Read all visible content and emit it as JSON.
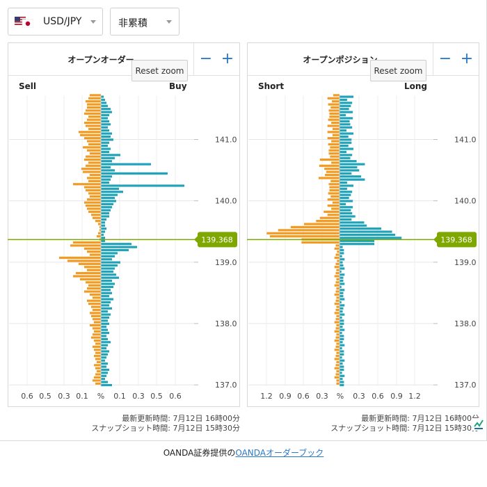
{
  "header": {
    "pair_select": {
      "value": "USD/JPY"
    },
    "mode_select": {
      "value": "非累積"
    }
  },
  "left_panel": {
    "title": "オープンオーダー",
    "minus": "−",
    "plus": "+",
    "left_label": "Sell",
    "right_label": "Buy",
    "reset_zoom": "Reset zoom",
    "updated": "最新更新時間: 7月12日 16時00分",
    "snapshot": "スナップショット時間: 7月12日 15時30分"
  },
  "right_panel": {
    "title": "オープンポジション",
    "minus": "−",
    "plus": "+",
    "left_label": "Short",
    "right_label": "Long",
    "reset_zoom": "Reset zoom",
    "updated": "最新更新時間: 7月12日 16時00分",
    "snapshot": "スナップショット時間: 7月12日 15時30分"
  },
  "current_price": "139.368",
  "footer": {
    "prefix": "OANDA証券提供の",
    "link": "OANDAオーダーブック"
  },
  "colors": {
    "sell": "#f39a21",
    "buy": "#1ea3b8",
    "price_line": "#7ea800",
    "accent": "#2a78c8"
  },
  "chart_data": [
    {
      "type": "bar",
      "title": "オープンオーダー",
      "orientation": "horizontal-butterfly",
      "ylim": [
        136.98,
        141.72
      ],
      "y_ticks": [
        "141.0",
        "140.0",
        "139.0",
        "138.0",
        "137.0"
      ],
      "x_ticks": [
        "0.6",
        "0.5",
        "0.3",
        "0.1",
        "%",
        "0.1",
        "0.3",
        "0.5",
        "0.6"
      ],
      "xlim": 0.7,
      "bucket": 0.05,
      "current_price": 139.368,
      "prices": [
        141.7,
        141.65,
        141.6,
        141.55,
        141.5,
        141.45,
        141.4,
        141.35,
        141.3,
        141.25,
        141.2,
        141.15,
        141.1,
        141.05,
        141.0,
        140.95,
        140.9,
        140.85,
        140.8,
        140.75,
        140.7,
        140.65,
        140.6,
        140.55,
        140.5,
        140.45,
        140.4,
        140.35,
        140.3,
        140.25,
        140.2,
        140.15,
        140.1,
        140.05,
        140.0,
        139.95,
        139.9,
        139.85,
        139.8,
        139.75,
        139.7,
        139.65,
        139.6,
        139.55,
        139.5,
        139.45,
        139.4,
        139.35,
        139.3,
        139.25,
        139.2,
        139.15,
        139.1,
        139.05,
        139.0,
        138.95,
        138.9,
        138.85,
        138.8,
        138.75,
        138.7,
        138.65,
        138.6,
        138.55,
        138.5,
        138.45,
        138.4,
        138.35,
        138.3,
        138.25,
        138.2,
        138.15,
        138.1,
        138.05,
        138.0,
        137.95,
        137.9,
        137.85,
        137.8,
        137.75,
        137.7,
        137.65,
        137.6,
        137.55,
        137.5,
        137.45,
        137.4,
        137.35,
        137.3,
        137.25,
        137.2,
        137.15,
        137.1,
        137.05,
        137.0
      ],
      "series": [
        {
          "name": "Sell",
          "values": [
            0.08,
            0.09,
            0.11,
            0.1,
            0.1,
            0.11,
            0.12,
            0.09,
            0.1,
            0.12,
            0.11,
            0.09,
            0.16,
            0.15,
            0.12,
            0.1,
            0.09,
            0.13,
            0.1,
            0.08,
            0.11,
            0.12,
            0.09,
            0.11,
            0.14,
            0.13,
            0.08,
            0.1,
            0.09,
            0.2,
            0.12,
            0.11,
            0.09,
            0.08,
            0.1,
            0.12,
            0.11,
            0.1,
            0.09,
            0.07,
            0.06,
            0.04,
            0.02,
            0.01,
            0.01,
            0.02,
            0.03,
            0.01,
            0.02,
            0.02,
            0.02,
            0.03,
            0.02,
            0.02,
            0.02,
            0.02,
            0.02,
            0.02,
            0.02,
            0.02,
            0.02,
            0.01,
            0.02,
            0.02,
            0.02,
            0.02,
            0.02,
            0.02,
            0.02,
            0.02,
            0.02,
            0.02,
            0.02,
            0.02,
            0.02,
            0.01,
            0.02,
            0.02,
            0.02,
            0.02,
            0.02,
            0.01,
            0.02,
            0.02,
            0.02,
            0.02,
            0.02,
            0.02,
            0.02,
            0.02,
            0.02,
            0.02,
            0.02,
            0.02,
            0.02
          ]
        },
        {
          "name": "Buy",
          "values": [
            0.02,
            0.03,
            0.04,
            0.05,
            0.07,
            0.08,
            0.06,
            0.05,
            0.06,
            0.07,
            0.05,
            0.06,
            0.08,
            0.07,
            0.09,
            0.06,
            0.05,
            0.07,
            0.06,
            0.14,
            0.1,
            0.08,
            0.36,
            0.07,
            0.1,
            0.48,
            0.08,
            0.07,
            0.06,
            0.6,
            0.13,
            0.16,
            0.12,
            0.1,
            0.11,
            0.09,
            0.08,
            0.07,
            0.06,
            0.06,
            0.04,
            0.03,
            0.03,
            0.04,
            0.03,
            0.02,
            0.03,
            0.03,
            0.02,
            0.03,
            0.02,
            0.02,
            0.02,
            0.02,
            0.02,
            0.02,
            0.02,
            0.02,
            0.02,
            0.02,
            0.02,
            0.02,
            0.02,
            0.02,
            0.02,
            0.02,
            0.02,
            0.02,
            0.02,
            0.02,
            0.02,
            0.02,
            0.02,
            0.02,
            0.02,
            0.02,
            0.02,
            0.02,
            0.02,
            0.02,
            0.02,
            0.02,
            0.02,
            0.02,
            0.02,
            0.02,
            0.02,
            0.02,
            0.02,
            0.02,
            0.02,
            0.02,
            0.02,
            0.02,
            0.02
          ]
        }
      ],
      "below_overrides": {
        "sell": [
          0.2,
          0.22,
          0.12,
          0.1,
          0.08,
          0.3,
          0.24,
          0.16,
          0.12,
          0.1,
          0.18,
          0.2,
          0.15,
          0.11,
          0.09,
          0.1,
          0.12,
          0.08,
          0.06,
          0.1,
          0.09,
          0.07,
          0.06,
          0.08,
          0.07,
          0.06,
          0.05,
          0.08,
          0.06,
          0.05,
          0.06,
          0.07,
          0.05,
          0.04,
          0.06,
          0.05,
          0.04,
          0.05,
          0.04,
          0.03,
          0.05,
          0.04,
          0.03,
          0.04,
          0.05,
          0.06,
          0.04
        ],
        "buy": [
          0.22,
          0.26,
          0.2,
          0.12,
          0.1,
          0.08,
          0.14,
          0.12,
          0.1,
          0.09,
          0.11,
          0.13,
          0.08,
          0.1,
          0.09,
          0.07,
          0.08,
          0.06,
          0.09,
          0.07,
          0.06,
          0.08,
          0.05,
          0.07,
          0.06,
          0.05,
          0.06,
          0.04,
          0.05,
          0.06,
          0.04,
          0.05,
          0.07,
          0.05,
          0.04,
          0.06,
          0.05,
          0.04,
          0.03,
          0.05,
          0.04,
          0.06,
          0.05,
          0.04,
          0.03,
          0.05,
          0.08
        ]
      }
    },
    {
      "type": "bar",
      "title": "オープンポジション",
      "orientation": "horizontal-butterfly",
      "ylim": [
        136.98,
        141.72
      ],
      "y_ticks": [
        "141.0",
        "140.0",
        "139.0",
        "138.0",
        "137.0"
      ],
      "x_ticks": [
        "1.2",
        "0.9",
        "0.6",
        "0.3",
        "%",
        "0.3",
        "0.6",
        "0.9",
        "1.2"
      ],
      "xlim": 1.45,
      "current_price": 139.368
    }
  ]
}
